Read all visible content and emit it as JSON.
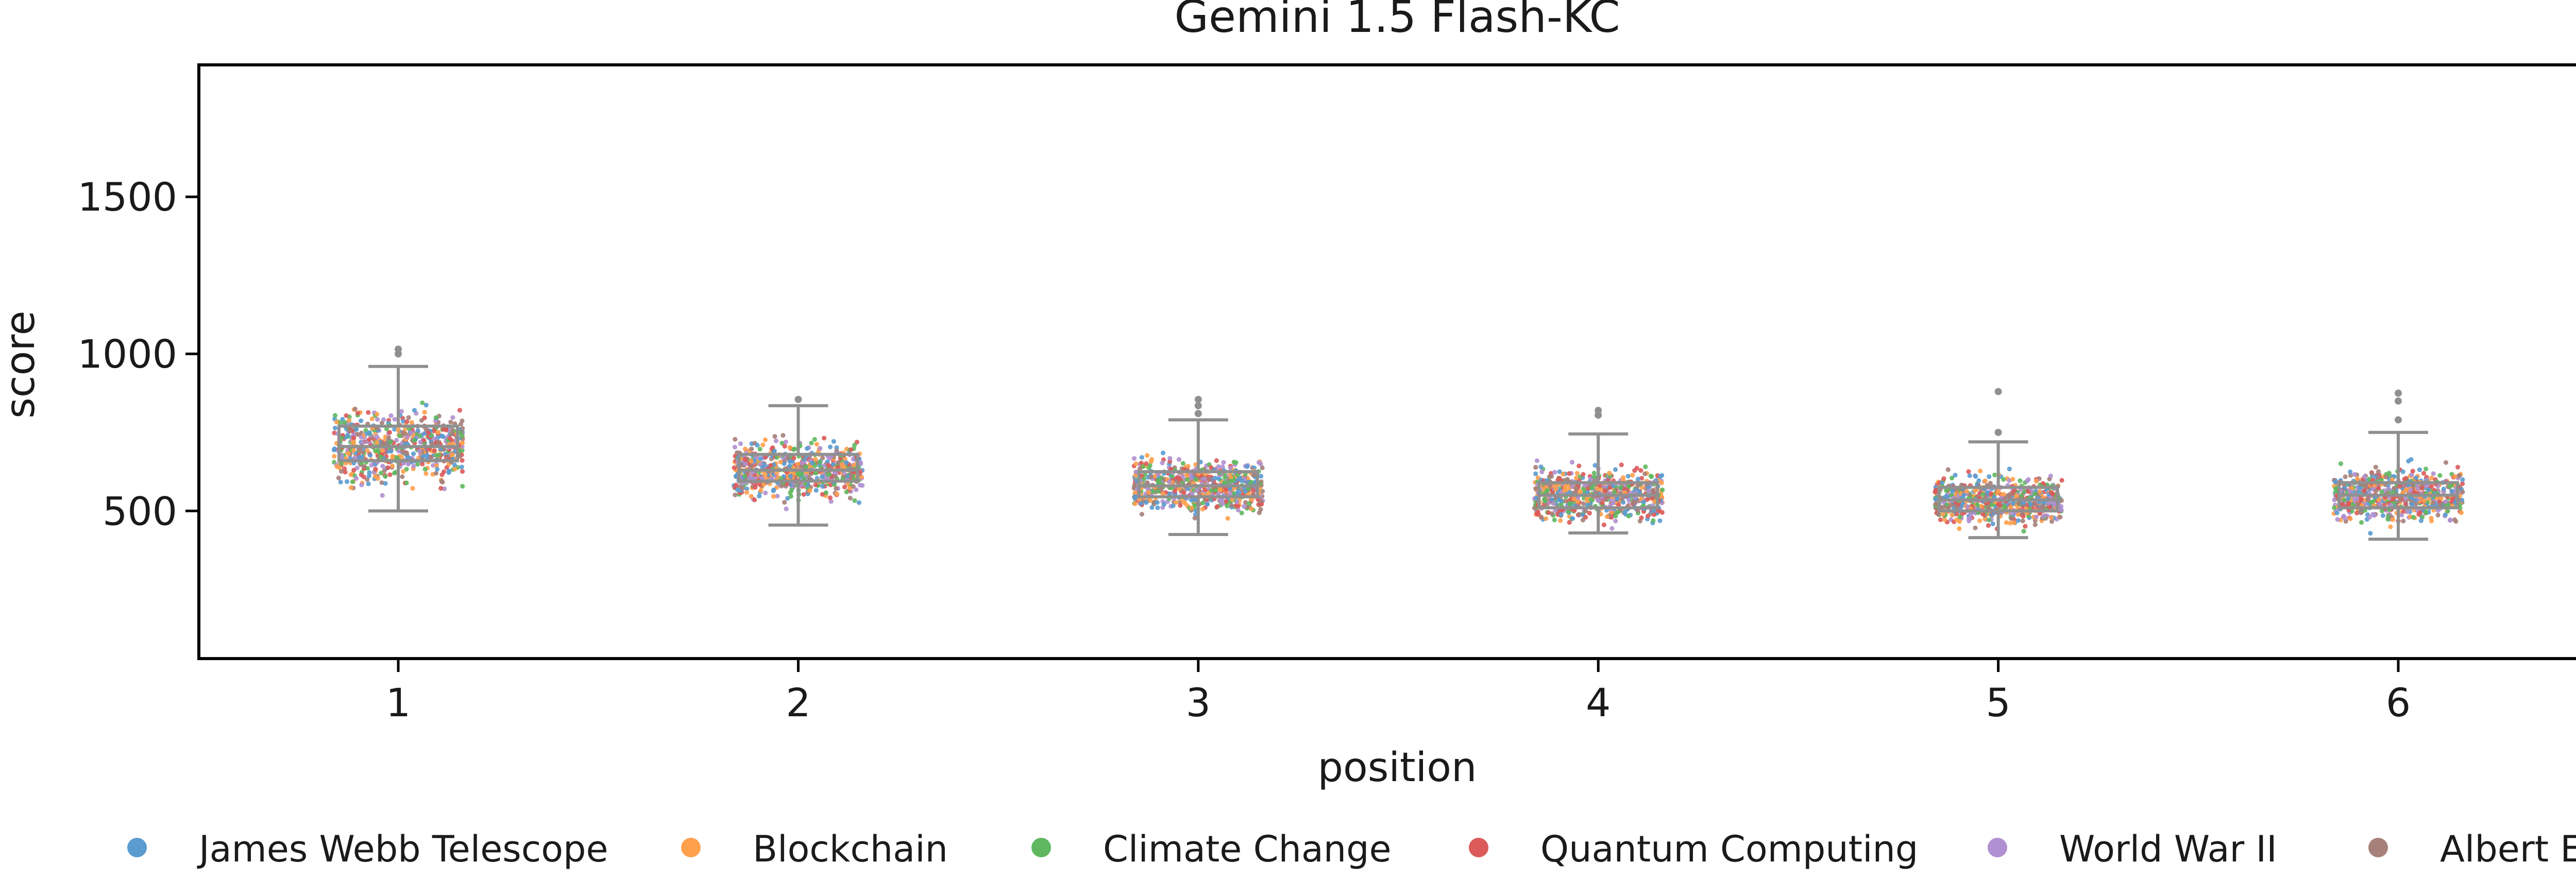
{
  "chart_data": {
    "type": "scatter",
    "title": "Gemini 1.5 Flash-KC",
    "xlabel": "position",
    "ylabel": "score",
    "categories": [
      "1",
      "2",
      "3",
      "4",
      "5",
      "6"
    ],
    "yticks": [
      500,
      1000,
      1500
    ],
    "ylim": [
      30,
      1920
    ],
    "grid": false,
    "legend_position": "bottom",
    "series": [
      {
        "name": "James Webb Telescope",
        "color": "#5b9bd0"
      },
      {
        "name": "Blockchain",
        "color": "#ffa04d"
      },
      {
        "name": "Climate Change",
        "color": "#5fb85f"
      },
      {
        "name": "Quantum Computing",
        "color": "#dc5a5a"
      },
      {
        "name": "World War II",
        "color": "#b090d0"
      },
      {
        "name": "Albert Einstein",
        "color": "#a6807a"
      }
    ],
    "boxplots": [
      {
        "position": "1",
        "whisker_low": 500,
        "q1": 660,
        "median": 705,
        "q3": 770,
        "whisker_high": 960,
        "outliers": [
          1000,
          1015
        ]
      },
      {
        "position": "2",
        "whisker_low": 455,
        "q1": 595,
        "median": 630,
        "q3": 680,
        "whisker_high": 835,
        "outliers": [
          855
        ]
      },
      {
        "position": "3",
        "whisker_low": 425,
        "q1": 545,
        "median": 580,
        "q3": 625,
        "whisker_high": 790,
        "outliers": [
          810,
          835,
          855
        ]
      },
      {
        "position": "4",
        "whisker_low": 430,
        "q1": 510,
        "median": 550,
        "q3": 590,
        "whisker_high": 745,
        "outliers": [
          805,
          820
        ]
      },
      {
        "position": "5",
        "whisker_low": 415,
        "q1": 500,
        "median": 535,
        "q3": 575,
        "whisker_high": 720,
        "outliers": [
          750,
          880
        ]
      },
      {
        "position": "6",
        "whisker_low": 410,
        "q1": 510,
        "median": 550,
        "q3": 590,
        "whisker_high": 750,
        "outliers": [
          790,
          850,
          875
        ]
      }
    ],
    "point_clouds": [
      {
        "position": "1",
        "low": 480,
        "high": 1000
      },
      {
        "position": "2",
        "low": 440,
        "high": 860
      },
      {
        "position": "3",
        "low": 405,
        "high": 850
      },
      {
        "position": "4",
        "low": 415,
        "high": 800
      },
      {
        "position": "5",
        "low": 400,
        "high": 740
      },
      {
        "position": "6",
        "low": 395,
        "high": 760
      }
    ],
    "box_color": "#909090"
  }
}
